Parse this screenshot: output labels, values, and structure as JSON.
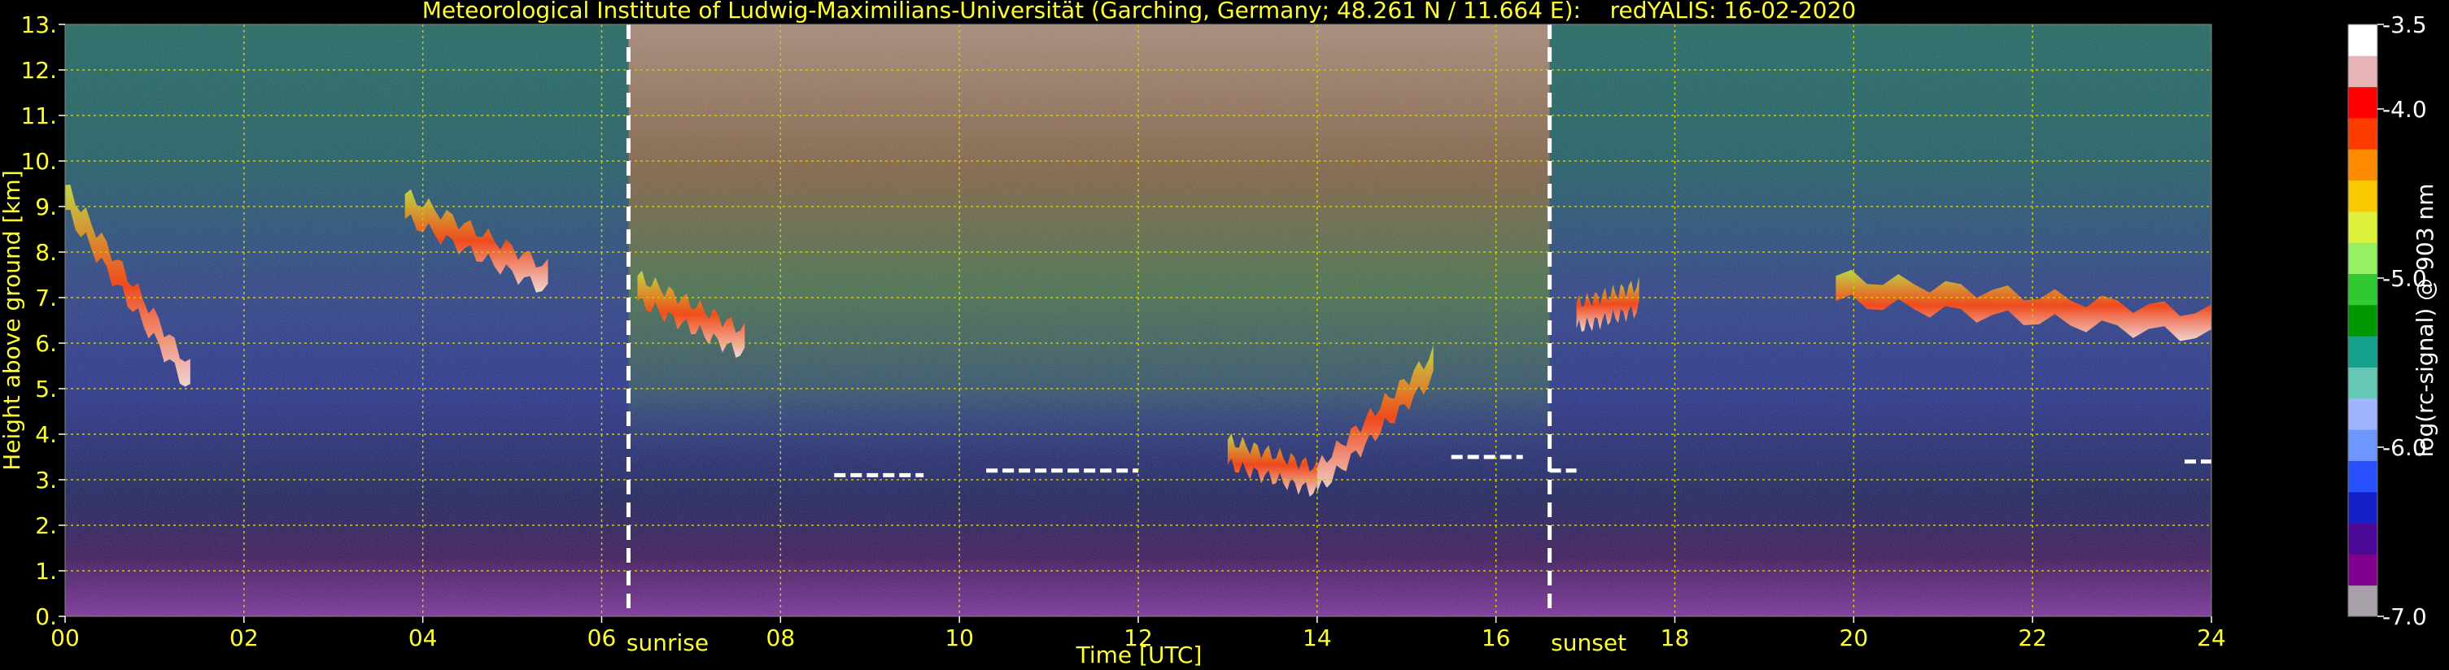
{
  "chart_data": {
    "type": "heatmap",
    "title": "Meteorological Institute of Ludwig-Maximilians-Universität (Garching, Germany; 48.261 N / 11.664 E):    redYALIS: 16-02-2020",
    "xlabel": "Time [UTC]",
    "ylabel": "Height above ground [km]",
    "xlim": [
      0,
      24
    ],
    "ylim": [
      0,
      13
    ],
    "x_ticks": [
      "00",
      "02",
      "04",
      "06",
      "08",
      "10",
      "12",
      "14",
      "16",
      "18",
      "20",
      "22",
      "24"
    ],
    "y_ticks": [
      "0.",
      "1.",
      "2.",
      "3.",
      "4.",
      "5.",
      "6.",
      "7.",
      "8.",
      "9.",
      "10.",
      "11.",
      "12.",
      "13."
    ],
    "grid": true,
    "grid_color": "#cccc00",
    "markers": [
      {
        "label": "sunrise",
        "time": 6.3
      },
      {
        "label": "sunset",
        "time": 16.6
      }
    ],
    "colorbar": {
      "label": "log(rc-signal) @ 903 nm",
      "range": [
        -7.0,
        -3.5
      ],
      "ticks": [
        "-3.5",
        "-4.0",
        "-5.0",
        "-6.0",
        "-7.0"
      ],
      "tick_values": [
        -3.5,
        -4.0,
        -5.0,
        -6.0,
        -7.0
      ],
      "colors": [
        "#a8a0a8",
        "#800090",
        "#4b0a96",
        "#1420c8",
        "#2850ff",
        "#6e96ff",
        "#a0b4ff",
        "#64c8b4",
        "#14a08c",
        "#009600",
        "#32c832",
        "#96f064",
        "#dcf03c",
        "#fac800",
        "#ff8c00",
        "#ff3c00",
        "#ff0000",
        "#e6b4b4",
        "#ffffff"
      ]
    },
    "cloud_layers": [
      {
        "t0": 0.0,
        "t1": 1.4,
        "h_start": 9.2,
        "h_end": 5.2
      },
      {
        "t0": 3.8,
        "t1": 5.4,
        "h_start": 9.0,
        "h_end": 7.4
      },
      {
        "t0": 6.4,
        "t1": 7.6,
        "h_start": 7.2,
        "h_end": 6.0
      },
      {
        "t0": 13.0,
        "t1": 14.0,
        "h_start": 3.6,
        "h_end": 3.0
      },
      {
        "t0": 14.0,
        "t1": 15.3,
        "h_start": 3.0,
        "h_end": 5.5
      },
      {
        "t0": 16.9,
        "t1": 17.6,
        "h_start": 6.6,
        "h_end": 7.0
      },
      {
        "t0": 19.8,
        "t1": 24.0,
        "h_start": 7.2,
        "h_end": 6.4
      }
    ],
    "boundary_layer": [
      {
        "t0": 8.6,
        "t1": 9.6,
        "h": 3.1
      },
      {
        "t0": 10.3,
        "t1": 12.0,
        "h": 3.2
      },
      {
        "t0": 15.5,
        "t1": 16.3,
        "h": 3.5
      },
      {
        "t0": 16.6,
        "t1": 16.9,
        "h": 3.2
      },
      {
        "t0": 23.7,
        "t1": 24.0,
        "h": 3.4
      }
    ]
  }
}
